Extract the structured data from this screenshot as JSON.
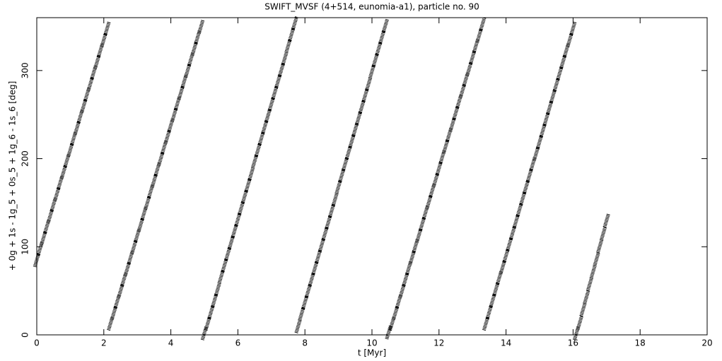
{
  "chart_data": {
    "type": "scatter",
    "title": "SWIFT_MVSF (4+514, eunomia-a1), particle no. 90",
    "x_label": "t [Myr]",
    "y_label": "+ 0g + 1s - 1g_5 + 0s_5 + 1g_6 - 1s_6 [deg]",
    "color": "#000000",
    "xlim": [
      0,
      20
    ],
    "xticks": [
      0,
      2,
      4,
      6,
      8,
      10,
      12,
      14,
      16,
      18,
      20
    ],
    "ylim": [
      0,
      360
    ],
    "yticks": [
      0,
      100,
      200,
      300
    ],
    "x": [
      0,
      0.1,
      0.2,
      0.3,
      0.4,
      0.5,
      0.6,
      0.7,
      0.8,
      0.9,
      1.0,
      1.1,
      1.2,
      1.3,
      1.4,
      1.5,
      1.6,
      1.7,
      1.8,
      1.9,
      2.0,
      2.1,
      2.2,
      2.3,
      2.4,
      2.5,
      2.6,
      2.7,
      2.8,
      2.9,
      3.0,
      3.1,
      3.2,
      3.3,
      3.4,
      3.5,
      3.6,
      3.7,
      3.8,
      3.9,
      4.0,
      4.1,
      4.2,
      4.3,
      4.4,
      4.5,
      4.6,
      4.7,
      4.8,
      4.9,
      5.0,
      5.1,
      5.2,
      5.3,
      5.4,
      5.5,
      5.6,
      5.7,
      5.8,
      5.9,
      6.0,
      6.1,
      6.2,
      6.3,
      6.4,
      6.5,
      6.6,
      6.7,
      6.8,
      6.9,
      7.0,
      7.1,
      7.2,
      7.3,
      7.4,
      7.5,
      7.6,
      7.7,
      7.8,
      7.9,
      8.0,
      8.1,
      8.2,
      8.3,
      8.4,
      8.5,
      8.6,
      8.7,
      8.8,
      8.9,
      9.0,
      9.1,
      9.2,
      9.3,
      9.4,
      9.5,
      9.6,
      9.7,
      9.8,
      9.9,
      10.0,
      10.1,
      10.2,
      10.3,
      10.4,
      10.5,
      10.6,
      10.7,
      10.8,
      10.9,
      11.0,
      11.1,
      11.2,
      11.3,
      11.4,
      11.5,
      11.6,
      11.7,
      11.8,
      11.9,
      12.0,
      12.1,
      12.2,
      12.3,
      12.4,
      12.5,
      12.6,
      12.7,
      12.8,
      12.9,
      13.0,
      13.1,
      13.2,
      13.3,
      13.4,
      13.5,
      13.6,
      13.7,
      13.8,
      13.9,
      14.0,
      14.1,
      14.2,
      14.3,
      14.4,
      14.5,
      14.6,
      14.7,
      14.8,
      14.9,
      15.0,
      15.1,
      15.2,
      15.3,
      15.4,
      15.5,
      15.6,
      15.7,
      15.8,
      15.9,
      16.0,
      16.1,
      16.2,
      16.3,
      16.4,
      16.5,
      16.6,
      16.7,
      16.8,
      16.9,
      17.0
    ],
    "values": [
      85,
      98,
      110,
      123,
      135,
      148,
      160,
      173,
      185,
      198,
      210,
      223,
      235,
      248,
      260,
      273,
      285,
      298,
      310,
      323,
      335,
      348,
      13,
      25,
      38,
      50,
      63,
      75,
      88,
      100,
      113,
      125,
      138,
      150,
      163,
      175,
      188,
      200,
      213,
      225,
      238,
      250,
      263,
      275,
      288,
      300,
      313,
      325,
      338,
      350,
      2,
      13,
      26,
      39,
      52,
      66,
      79,
      92,
      105,
      118,
      131,
      144,
      157,
      170,
      183,
      197,
      210,
      223,
      236,
      249,
      262,
      275,
      288,
      301,
      314,
      328,
      341,
      354,
      10,
      24,
      37,
      50,
      63,
      76,
      89,
      102,
      115,
      128,
      141,
      154,
      168,
      181,
      194,
      207,
      220,
      233,
      246,
      259,
      272,
      285,
      299,
      312,
      325,
      338,
      351,
      3,
      13,
      25,
      38,
      50,
      63,
      76,
      88,
      101,
      113,
      126,
      139,
      151,
      164,
      176,
      189,
      202,
      214,
      227,
      239,
      252,
      265,
      277,
      290,
      302,
      315,
      328,
      340,
      353,
      13,
      26,
      39,
      52,
      65,
      77,
      90,
      103,
      116,
      129,
      142,
      155,
      168,
      181,
      194,
      206,
      219,
      232,
      245,
      258,
      271,
      284,
      297,
      310,
      323,
      335,
      348,
      2,
      14,
      29,
      43,
      58,
      72,
      86,
      101,
      115,
      130
    ]
  }
}
